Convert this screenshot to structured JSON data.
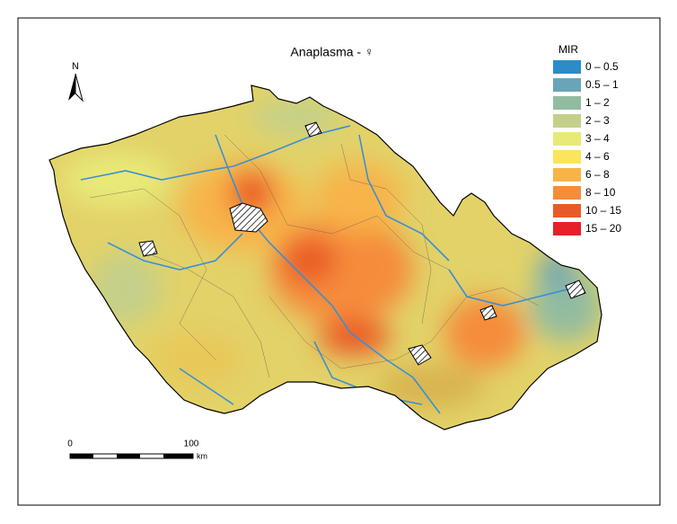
{
  "map": {
    "title": "Anaplasma - ♀",
    "north_label": "N",
    "legend": {
      "title": "MIR",
      "items": [
        {
          "label": "0 – 0.5",
          "color": "#2b8cc8"
        },
        {
          "label": "0.5 – 1",
          "color": "#6aa4b8"
        },
        {
          "label": "1 – 2",
          "color": "#92bca0"
        },
        {
          "label": "2 – 3",
          "color": "#c4d08a"
        },
        {
          "label": "3 – 4",
          "color": "#e8ea78"
        },
        {
          "label": "4 – 6",
          "color": "#fce45c"
        },
        {
          "label": "6 – 8",
          "color": "#f8b448"
        },
        {
          "label": "8 – 10",
          "color": "#f58c3a"
        },
        {
          "label": "10 – 15",
          "color": "#ea5a28"
        },
        {
          "label": "15 – 20",
          "color": "#e8202a"
        }
      ]
    },
    "scale_bar": {
      "labels": [
        "0",
        "100"
      ],
      "unit": "km"
    }
  }
}
